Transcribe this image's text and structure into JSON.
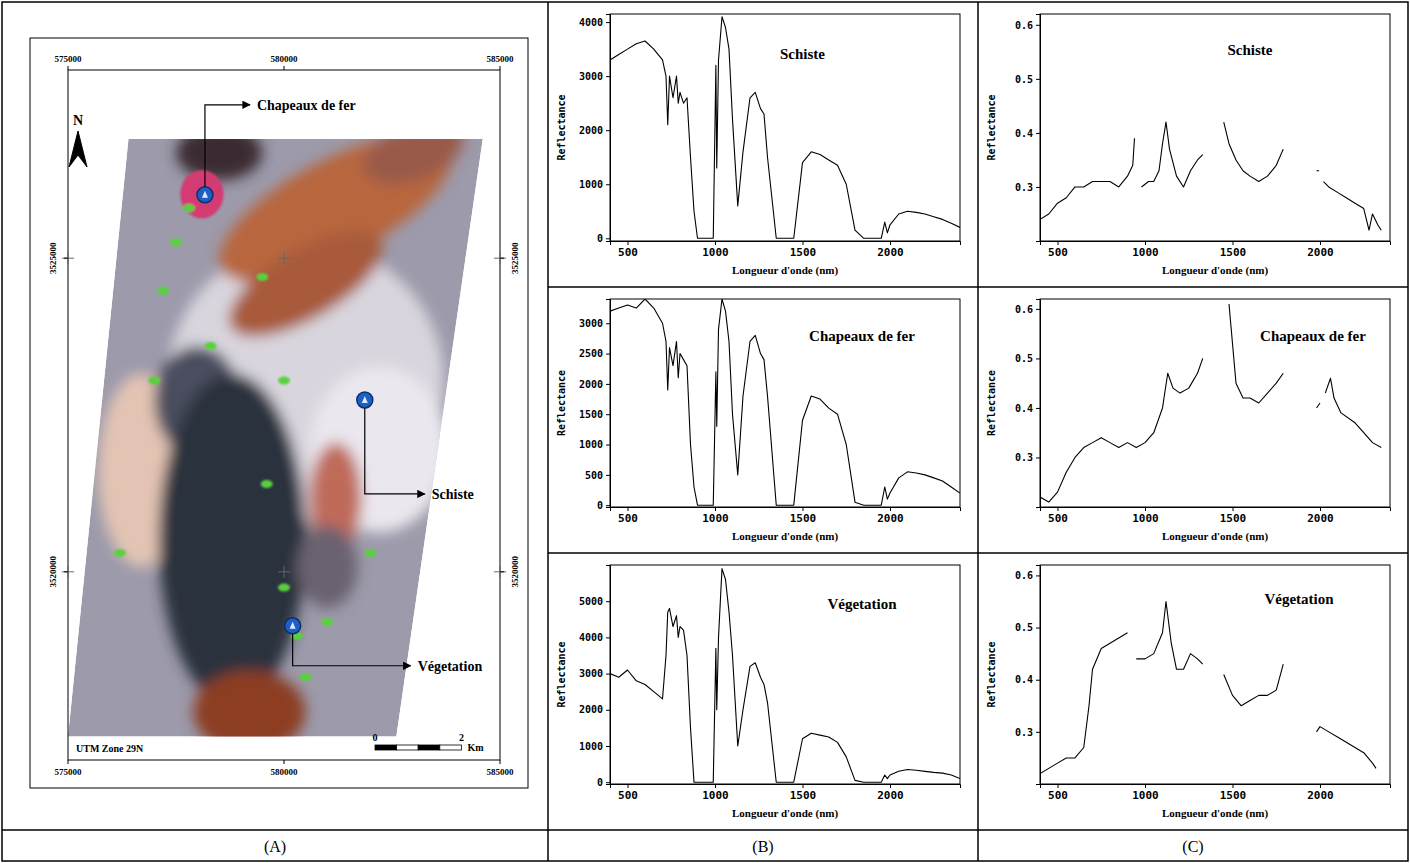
{
  "panel_labels": [
    "(A)",
    "(B)",
    "(C)"
  ],
  "chart_data": [
    {
      "type": "map",
      "xlim": [
        575000,
        585000
      ],
      "ylim": [
        3517000,
        3528000
      ],
      "xticks": [
        575000,
        580000,
        585000
      ],
      "yticks": [
        3520000,
        3525000
      ],
      "color": "#1f5fc4",
      "points": [
        {
          "label": "Chapeaux de fer",
          "x": 578170,
          "y": 3526010
        },
        {
          "label": "Schiste",
          "x": 581870,
          "y": 3522740
        },
        {
          "label": "Végetation",
          "x": 580200,
          "y": 3519140
        }
      ],
      "north": "N",
      "projection": "UTM Zone 29N",
      "scale_ticks": [
        0,
        2
      ],
      "scale_unit": "Km"
    },
    {
      "type": "line",
      "title": "Schiste",
      "xlabel": "Longueur d'onde (nm)",
      "ylabel": "Reflectance",
      "color": "#000000",
      "xlim": [
        400,
        2400
      ],
      "xticks": [
        500,
        1000,
        1500,
        2000
      ],
      "ylim": [
        -50,
        4150
      ],
      "yticks": [
        0,
        1000,
        2000,
        3000,
        4000
      ],
      "x": [
        400,
        450,
        500,
        550,
        600,
        650,
        700,
        720,
        730,
        740,
        760,
        780,
        790,
        800,
        820,
        840,
        860,
        880,
        900,
        950,
        990,
        1005,
        1010,
        1020,
        1040,
        1060,
        1080,
        1100,
        1130,
        1160,
        1200,
        1230,
        1260,
        1280,
        1300,
        1350,
        1400,
        1450,
        1500,
        1550,
        1600,
        1650,
        1700,
        1750,
        1800,
        1850,
        1900,
        1950,
        1970,
        1985,
        2000,
        2050,
        2100,
        2150,
        2200,
        2250,
        2300,
        2350,
        2400
      ],
      "values": [
        3300,
        3400,
        3500,
        3600,
        3650,
        3500,
        3300,
        3000,
        2100,
        3000,
        2600,
        3000,
        2500,
        2700,
        2500,
        2600,
        1500,
        500,
        0,
        0,
        0,
        3200,
        1300,
        3300,
        4100,
        3900,
        3500,
        2200,
        600,
        1600,
        2600,
        2700,
        2400,
        2300,
        1500,
        0,
        0,
        0,
        1400,
        1600,
        1550,
        1450,
        1350,
        1000,
        150,
        0,
        0,
        0,
        300,
        100,
        250,
        450,
        500,
        480,
        450,
        400,
        350,
        280,
        200
      ]
    },
    {
      "type": "line",
      "title": "Chapeaux de fer",
      "xlabel": "Longueur d'onde (nm)",
      "ylabel": "Reflectance",
      "color": "#000000",
      "xlim": [
        400,
        2400
      ],
      "xticks": [
        500,
        1000,
        1500,
        2000
      ],
      "ylim": [
        -30,
        3400
      ],
      "yticks": [
        0,
        500,
        1000,
        1500,
        2000,
        2500,
        3000
      ],
      "x": [
        400,
        450,
        500,
        550,
        600,
        650,
        700,
        720,
        730,
        740,
        760,
        780,
        790,
        800,
        820,
        840,
        860,
        880,
        900,
        950,
        990,
        1005,
        1010,
        1020,
        1040,
        1060,
        1080,
        1100,
        1130,
        1160,
        1200,
        1230,
        1260,
        1280,
        1300,
        1350,
        1400,
        1450,
        1500,
        1550,
        1600,
        1650,
        1700,
        1750,
        1800,
        1850,
        1900,
        1950,
        1970,
        1985,
        2000,
        2050,
        2100,
        2150,
        2200,
        2250,
        2300,
        2350,
        2400
      ],
      "values": [
        3200,
        3250,
        3300,
        3250,
        3400,
        3250,
        3000,
        2700,
        1900,
        2600,
        2300,
        2700,
        2100,
        2500,
        2400,
        2300,
        1000,
        300,
        0,
        0,
        0,
        2200,
        1300,
        2900,
        3400,
        3200,
        2700,
        1500,
        500,
        1800,
        2700,
        2800,
        2500,
        2400,
        1800,
        0,
        0,
        0,
        1400,
        1800,
        1750,
        1600,
        1500,
        1000,
        50,
        0,
        0,
        0,
        300,
        100,
        200,
        450,
        550,
        530,
        500,
        450,
        400,
        300,
        200
      ]
    },
    {
      "type": "line",
      "title": "Végetation",
      "xlabel": "Longueur d'onde (nm)",
      "ylabel": "Reflectance",
      "color": "#000000",
      "xlim": [
        400,
        2400
      ],
      "xticks": [
        500,
        1000,
        1500,
        2000
      ],
      "ylim": [
        -50,
        6000
      ],
      "yticks": [
        0,
        1000,
        2000,
        3000,
        4000,
        5000
      ],
      "x": [
        400,
        450,
        500,
        550,
        600,
        650,
        700,
        720,
        730,
        740,
        760,
        780,
        790,
        800,
        820,
        840,
        860,
        880,
        900,
        950,
        990,
        1005,
        1010,
        1020,
        1040,
        1060,
        1080,
        1100,
        1130,
        1160,
        1200,
        1230,
        1260,
        1280,
        1300,
        1350,
        1400,
        1450,
        1500,
        1550,
        1600,
        1650,
        1700,
        1750,
        1800,
        1850,
        1900,
        1950,
        1970,
        1985,
        2000,
        2050,
        2100,
        2150,
        2200,
        2250,
        2300,
        2350,
        2400
      ],
      "values": [
        3000,
        2900,
        3100,
        2800,
        2700,
        2500,
        2300,
        3500,
        4700,
        4800,
        4300,
        4600,
        4000,
        4300,
        4200,
        3500,
        1500,
        0,
        0,
        0,
        0,
        3700,
        2000,
        4000,
        5900,
        5600,
        4700,
        3500,
        1000,
        2000,
        3200,
        3300,
        2900,
        2700,
        2200,
        0,
        0,
        0,
        1200,
        1350,
        1300,
        1250,
        1100,
        700,
        50,
        0,
        0,
        0,
        200,
        100,
        200,
        300,
        350,
        330,
        300,
        270,
        250,
        200,
        100
      ]
    },
    {
      "type": "line",
      "title": "Schiste",
      "xlabel": "Longueur d'onde (nm)",
      "ylabel": "Reflectance",
      "color": "#000000",
      "xlim": [
        400,
        2400
      ],
      "xticks": [
        500,
        1000,
        1500,
        2000
      ],
      "ylim": [
        0.2,
        0.62
      ],
      "yticks": [
        0.3,
        0.4,
        0.5,
        0.6
      ],
      "x": [
        400,
        450,
        500,
        550,
        600,
        650,
        700,
        750,
        800,
        850,
        900,
        930,
        940,
        960,
        980,
        1020,
        1050,
        1080,
        1100,
        1120,
        1140,
        1180,
        1220,
        1260,
        1300,
        1330,
        1400,
        1450,
        1480,
        1520,
        1560,
        1600,
        1650,
        1700,
        1750,
        1790,
        1900,
        1980,
        1995,
        2005,
        2020,
        2050,
        2100,
        2150,
        2200,
        2250,
        2280,
        2300,
        2330,
        2350
      ],
      "values": [
        0.24,
        0.25,
        0.27,
        0.28,
        0.3,
        0.3,
        0.31,
        0.31,
        0.31,
        0.3,
        0.32,
        0.34,
        0.39,
        null,
        0.3,
        0.31,
        0.31,
        0.33,
        0.38,
        0.42,
        0.37,
        0.32,
        0.3,
        0.33,
        0.35,
        0.36,
        null,
        0.42,
        0.38,
        0.35,
        0.33,
        0.32,
        0.31,
        0.32,
        0.34,
        0.37,
        null,
        0.33,
        0.33,
        null,
        0.31,
        0.3,
        0.29,
        0.28,
        0.27,
        0.26,
        0.22,
        0.25,
        0.23,
        0.22
      ]
    },
    {
      "type": "line",
      "title": "Chapeaux de fer",
      "xlabel": "Longueur d'onde (nm)",
      "ylabel": "Reflectance",
      "color": "#000000",
      "xlim": [
        400,
        2400
      ],
      "xticks": [
        500,
        1000,
        1500,
        2000
      ],
      "ylim": [
        0.2,
        0.62
      ],
      "yticks": [
        0.3,
        0.4,
        0.5,
        0.6
      ],
      "x": [
        400,
        450,
        500,
        550,
        600,
        650,
        700,
        750,
        800,
        850,
        900,
        950,
        1000,
        1050,
        1100,
        1130,
        1160,
        1200,
        1250,
        1300,
        1330,
        1400,
        1480,
        1520,
        1560,
        1600,
        1650,
        1700,
        1750,
        1790,
        1900,
        1980,
        2000,
        2015,
        2030,
        2060,
        2080,
        2120,
        2200,
        2250,
        2300,
        2350
      ],
      "values": [
        0.22,
        0.21,
        0.23,
        0.27,
        0.3,
        0.32,
        0.33,
        0.34,
        0.33,
        0.32,
        0.33,
        0.32,
        0.33,
        0.35,
        0.4,
        0.47,
        0.44,
        0.43,
        0.44,
        0.47,
        0.5,
        null,
        0.61,
        0.45,
        0.42,
        0.42,
        0.41,
        0.43,
        0.45,
        0.47,
        null,
        0.4,
        0.41,
        null,
        0.43,
        0.46,
        0.42,
        0.39,
        0.37,
        0.35,
        0.33,
        0.32
      ]
    },
    {
      "type": "line",
      "title": "Végetation",
      "xlabel": "Longueur d'onde (nm)",
      "ylabel": "Reflectance",
      "color": "#000000",
      "xlim": [
        400,
        2400
      ],
      "xticks": [
        500,
        1000,
        1500,
        2000
      ],
      "ylim": [
        0.2,
        0.62
      ],
      "yticks": [
        0.3,
        0.4,
        0.5,
        0.6
      ],
      "x": [
        400,
        450,
        500,
        550,
        600,
        650,
        680,
        700,
        750,
        800,
        850,
        900,
        920,
        950,
        1000,
        1050,
        1100,
        1120,
        1150,
        1180,
        1220,
        1260,
        1300,
        1330,
        1400,
        1450,
        1500,
        1550,
        1600,
        1650,
        1700,
        1750,
        1790,
        1900,
        1980,
        2000,
        2050,
        2100,
        2150,
        2200,
        2250,
        2300,
        2320
      ],
      "values": [
        0.22,
        0.23,
        0.24,
        0.25,
        0.25,
        0.27,
        0.35,
        0.42,
        0.46,
        0.47,
        0.48,
        0.49,
        null,
        0.44,
        0.44,
        0.45,
        0.49,
        0.55,
        0.47,
        0.42,
        0.42,
        0.45,
        0.44,
        0.43,
        null,
        0.41,
        0.37,
        0.35,
        0.36,
        0.37,
        0.37,
        0.38,
        0.43,
        null,
        0.3,
        0.31,
        0.3,
        0.29,
        0.28,
        0.27,
        0.26,
        0.24,
        0.23
      ]
    }
  ]
}
